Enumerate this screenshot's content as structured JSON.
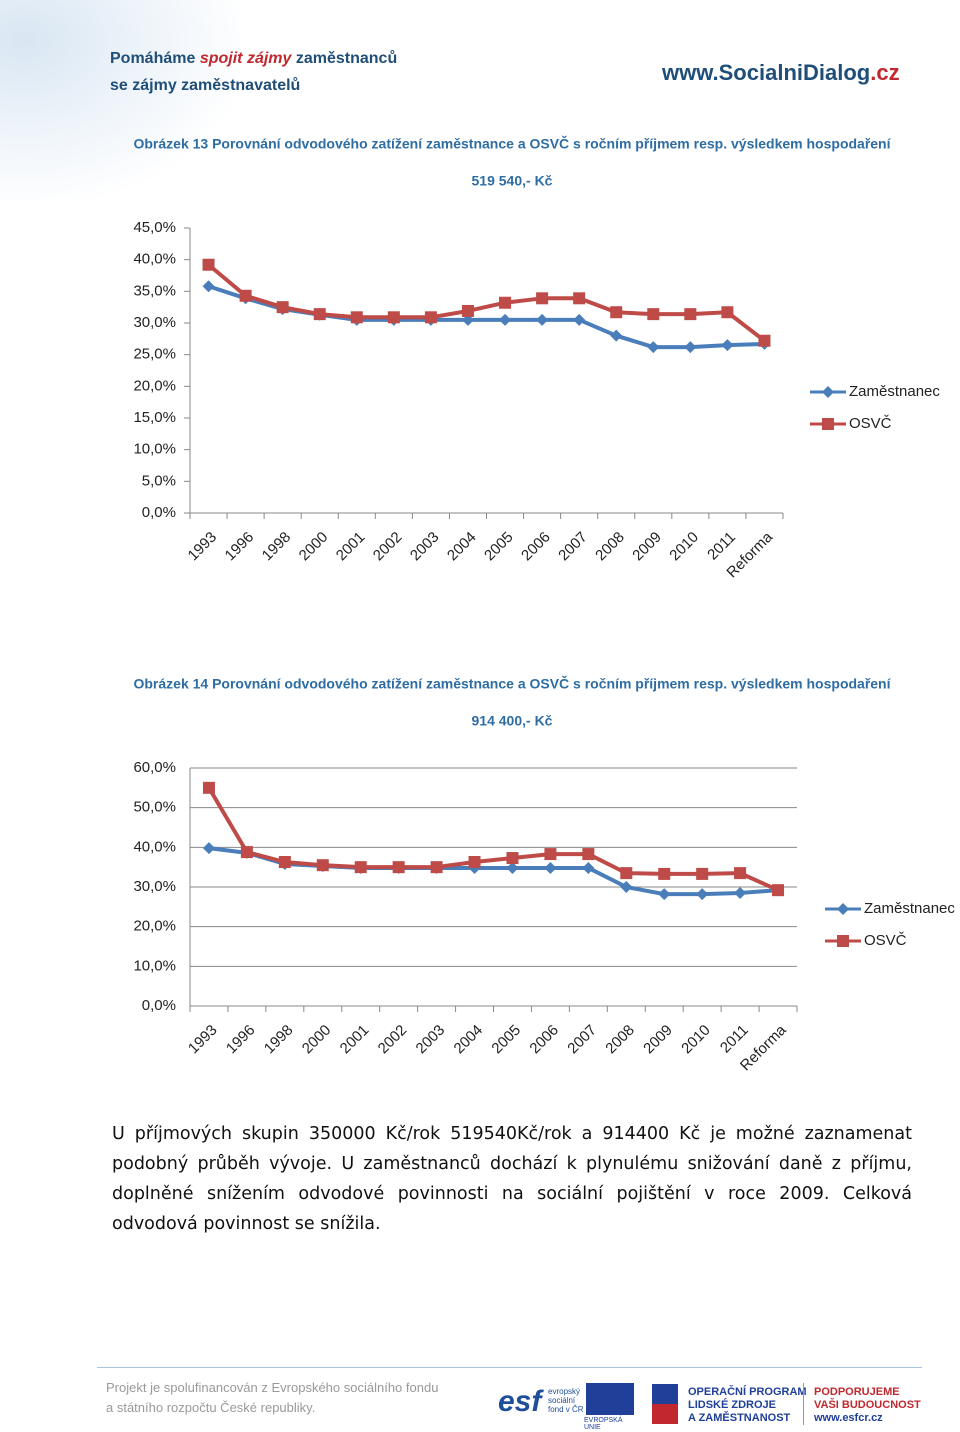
{
  "header": {
    "tagline": [
      "Pomáháme",
      "spojit zájmy",
      "zaměstnanců"
    ],
    "tagline2": "se zájmy zaměstnavatelů",
    "site": [
      "www.SocialniDialog",
      ".cz"
    ]
  },
  "chart_data": [
    {
      "type": "line",
      "title": "Obrázek 13 Porovnání odvodového zatížení zaměstnance a OSVČ s ročním příjmem resp. výsledkem hospodaření",
      "subtitle": "519 540,- Kč",
      "categories": [
        "1993",
        "1996",
        "1998",
        "2000",
        "2001",
        "2002",
        "2003",
        "2004",
        "2005",
        "2006",
        "2007",
        "2008",
        "2009",
        "2010",
        "2011",
        "Reforma"
      ],
      "series": [
        {
          "name": "Zaměstnanec",
          "color": "#4a7ebb",
          "marker": "diamond",
          "values": [
            35.8,
            33.9,
            32.2,
            31.3,
            30.5,
            30.5,
            30.5,
            30.5,
            30.5,
            30.5,
            30.5,
            28.0,
            26.2,
            26.2,
            26.5,
            26.7
          ]
        },
        {
          "name": "OSVČ",
          "color": "#be4b48",
          "marker": "square",
          "values": [
            39.2,
            34.3,
            32.5,
            31.4,
            30.9,
            30.9,
            30.9,
            31.9,
            33.2,
            33.9,
            33.9,
            31.7,
            31.4,
            31.4,
            31.7,
            27.2
          ]
        }
      ],
      "ylim": [
        0,
        45
      ],
      "yticks": [
        {
          "value": 0,
          "label": "0,0%"
        },
        {
          "value": 5,
          "label": "5,0%"
        },
        {
          "value": 10,
          "label": "10,0%"
        },
        {
          "value": 15,
          "label": "15,0%"
        },
        {
          "value": 20,
          "label": "20,0%"
        },
        {
          "value": 25,
          "label": "25,0%"
        },
        {
          "value": 30,
          "label": "30,0%"
        },
        {
          "value": 35,
          "label": "35,0%"
        },
        {
          "value": 40,
          "label": "40,0%"
        },
        {
          "value": 45,
          "label": "45,0%"
        }
      ],
      "grid": false,
      "legend": "right"
    },
    {
      "type": "line",
      "title": "Obrázek 14 Porovnání odvodového zatížení zaměstnance a OSVČ s ročním příjmem resp. výsledkem hospodaření",
      "subtitle": "914 400,- Kč",
      "categories": [
        "1993",
        "1996",
        "1998",
        "2000",
        "2001",
        "2002",
        "2003",
        "2004",
        "2005",
        "2006",
        "2007",
        "2008",
        "2009",
        "2010",
        "2011",
        "Reforma"
      ],
      "series": [
        {
          "name": "Zaměstnanec",
          "color": "#4a7ebb",
          "marker": "diamond",
          "values": [
            39.8,
            38.6,
            35.8,
            35.3,
            34.8,
            34.8,
            34.8,
            34.8,
            34.8,
            34.8,
            34.8,
            30.0,
            28.2,
            28.2,
            28.5,
            29.2
          ]
        },
        {
          "name": "OSVČ",
          "color": "#be4b48",
          "marker": "square",
          "values": [
            55.0,
            38.8,
            36.3,
            35.5,
            35.0,
            35.0,
            35.0,
            36.3,
            37.3,
            38.3,
            38.3,
            33.5,
            33.3,
            33.3,
            33.5,
            29.2
          ]
        }
      ],
      "ylim": [
        0,
        60
      ],
      "yticks": [
        {
          "value": 0,
          "label": "0,0%"
        },
        {
          "value": 10,
          "label": "10,0%"
        },
        {
          "value": 20,
          "label": "20,0%"
        },
        {
          "value": 30,
          "label": "30,0%"
        },
        {
          "value": 40,
          "label": "40,0%"
        },
        {
          "value": 50,
          "label": "50,0%"
        },
        {
          "value": 60,
          "label": "60,0%"
        }
      ],
      "grid": true,
      "legend": "right"
    }
  ],
  "paragraph": "U příjmových skupin 350000 Kč/rok 519540Kč/rok a 914400 Kč je možné zaznamenat podobný průběh vývoje. U zaměstnanců dochází k plynulému snižování daně z příjmu, doplněné snížením odvodové povinnosti na sociální pojištění v roce 2009. Celková odvodová povinnost se snížila.",
  "footer": {
    "lines": [
      "Projekt je spolufinancován z Evropského sociálního fondu",
      "a státního rozpočtu České republiky."
    ],
    "esf": "esf",
    "esf_text": [
      "evropský",
      "sociální",
      "fond v ČR"
    ],
    "eu": "EVROPSKÁ UNIE",
    "op": [
      "OPERAČNÍ PROGRAM",
      "LIDSKÉ ZDROJE",
      "A ZAMĚSTNANOST"
    ],
    "support": [
      "PODPORUJEME",
      "VAŠI BUDOUCNOST",
      "www.esfcr.cz"
    ]
  }
}
